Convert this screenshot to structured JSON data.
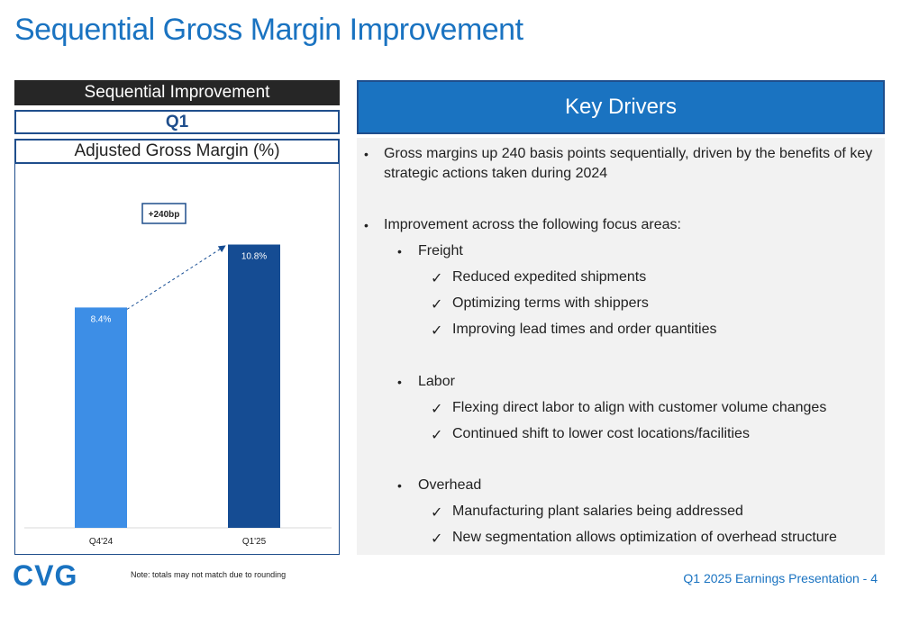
{
  "title": "Sequential Gross Margin Improvement",
  "left": {
    "header": "Sequential Improvement",
    "period": "Q1",
    "metric": "Adjusted Gross Margin (%)"
  },
  "chart_data": {
    "type": "bar",
    "categories": [
      "Q4'24",
      "Q1'25"
    ],
    "values": [
      8.4,
      10.8
    ],
    "value_labels": [
      "8.4%",
      "10.8%"
    ],
    "colors": [
      "#3d8ee6",
      "#154c93"
    ],
    "annotation": "+240bp",
    "ylim": [
      0,
      12.5
    ],
    "title": "Adjusted Gross Margin (%)",
    "xlabel": "",
    "ylabel": ""
  },
  "key_drivers": {
    "header": "Key Drivers",
    "point1_line1": "Gross margins up 240 basis points sequentially, driven by the benefits of key",
    "point1_line2": "strategic actions taken during 2024",
    "point2": "Improvement across the following focus areas:",
    "freight": "Freight",
    "freight_items": [
      "Reduced expedited shipments",
      "Optimizing terms with shippers",
      "Improving lead times and order quantities"
    ],
    "labor": "Labor",
    "labor_items": [
      "Flexing direct labor to align with customer volume changes",
      "Continued shift to lower cost locations/facilities"
    ],
    "overhead": "Overhead",
    "overhead_items": [
      "Manufacturing plant salaries being addressed",
      "New segmentation allows optimization of overhead structure"
    ],
    "bullet_char": "•",
    "check_char": "✓"
  },
  "footer": {
    "logo_text": "CVG",
    "note": "Note: totals may not match due to rounding",
    "right": "Q1 2025 Earnings Presentation - 4"
  }
}
